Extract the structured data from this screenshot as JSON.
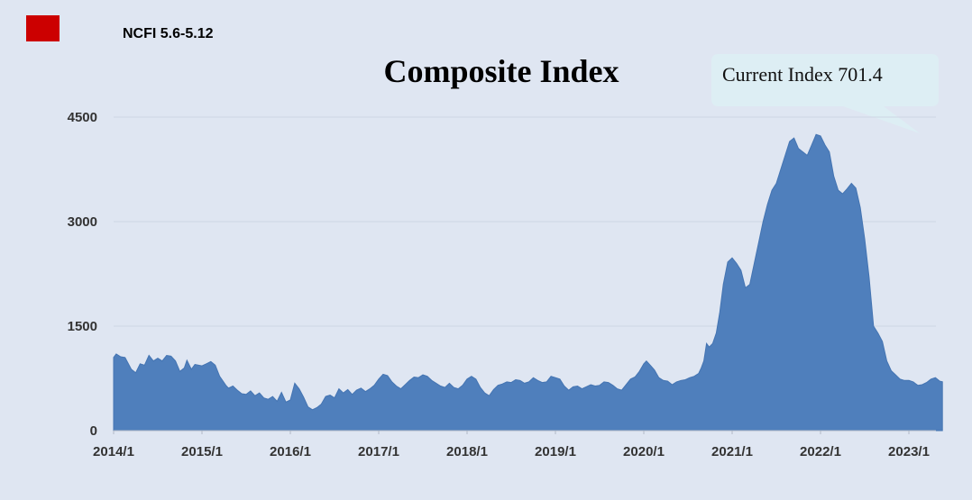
{
  "legend": {
    "label": "NCFI 5.6-5.12",
    "color": "#cc0000"
  },
  "callout": {
    "text": "Current Index 701.4"
  },
  "chart_data": {
    "type": "area",
    "title": "Composite Index",
    "xlabel": "",
    "ylabel": "",
    "ylim": [
      0,
      4500
    ],
    "yticks": [
      "0",
      "1500",
      "3000",
      "4500"
    ],
    "xticks": [
      "2014/1",
      "2015/1",
      "2016/1",
      "2017/1",
      "2018/1",
      "2019/1",
      "2020/1",
      "2021/1",
      "2022/1",
      "2023/1"
    ],
    "grid": true,
    "fill_color": "#4f7fbc",
    "x_range": [
      2014.0,
      2023.38
    ],
    "series": [
      {
        "values": [
          [
            2014.0,
            1050
          ],
          [
            2014.03,
            1100
          ],
          [
            2014.08,
            1060
          ],
          [
            2014.13,
            1050
          ],
          [
            2014.2,
            880
          ],
          [
            2014.25,
            830
          ],
          [
            2014.3,
            960
          ],
          [
            2014.35,
            940
          ],
          [
            2014.4,
            1080
          ],
          [
            2014.45,
            1000
          ],
          [
            2014.5,
            1040
          ],
          [
            2014.55,
            1000
          ],
          [
            2014.6,
            1080
          ],
          [
            2014.65,
            1070
          ],
          [
            2014.7,
            1000
          ],
          [
            2014.75,
            850
          ],
          [
            2014.8,
            900
          ],
          [
            2014.83,
            1010
          ],
          [
            2014.88,
            880
          ],
          [
            2014.92,
            950
          ],
          [
            2015.0,
            930
          ],
          [
            2015.05,
            960
          ],
          [
            2015.1,
            990
          ],
          [
            2015.15,
            940
          ],
          [
            2015.2,
            780
          ],
          [
            2015.27,
            650
          ],
          [
            2015.3,
            610
          ],
          [
            2015.35,
            640
          ],
          [
            2015.4,
            580
          ],
          [
            2015.45,
            530
          ],
          [
            2015.5,
            520
          ],
          [
            2015.55,
            570
          ],
          [
            2015.6,
            500
          ],
          [
            2015.65,
            540
          ],
          [
            2015.7,
            470
          ],
          [
            2015.75,
            450
          ],
          [
            2015.8,
            490
          ],
          [
            2015.85,
            420
          ],
          [
            2015.9,
            550
          ],
          [
            2015.95,
            410
          ],
          [
            2016.0,
            440
          ],
          [
            2016.05,
            680
          ],
          [
            2016.1,
            600
          ],
          [
            2016.15,
            480
          ],
          [
            2016.2,
            340
          ],
          [
            2016.25,
            300
          ],
          [
            2016.3,
            330
          ],
          [
            2016.35,
            380
          ],
          [
            2016.4,
            490
          ],
          [
            2016.45,
            510
          ],
          [
            2016.5,
            470
          ],
          [
            2016.55,
            600
          ],
          [
            2016.6,
            540
          ],
          [
            2016.65,
            590
          ],
          [
            2016.7,
            520
          ],
          [
            2016.75,
            580
          ],
          [
            2016.8,
            610
          ],
          [
            2016.85,
            560
          ],
          [
            2016.9,
            600
          ],
          [
            2016.95,
            650
          ],
          [
            2017.0,
            740
          ],
          [
            2017.05,
            810
          ],
          [
            2017.1,
            790
          ],
          [
            2017.15,
            700
          ],
          [
            2017.2,
            640
          ],
          [
            2017.25,
            600
          ],
          [
            2017.3,
            660
          ],
          [
            2017.35,
            720
          ],
          [
            2017.4,
            770
          ],
          [
            2017.45,
            760
          ],
          [
            2017.5,
            800
          ],
          [
            2017.55,
            780
          ],
          [
            2017.6,
            720
          ],
          [
            2017.65,
            680
          ],
          [
            2017.7,
            640
          ],
          [
            2017.75,
            620
          ],
          [
            2017.8,
            680
          ],
          [
            2017.85,
            620
          ],
          [
            2017.9,
            600
          ],
          [
            2017.95,
            650
          ],
          [
            2018.0,
            740
          ],
          [
            2018.05,
            780
          ],
          [
            2018.1,
            740
          ],
          [
            2018.15,
            620
          ],
          [
            2018.2,
            540
          ],
          [
            2018.25,
            500
          ],
          [
            2018.3,
            590
          ],
          [
            2018.35,
            650
          ],
          [
            2018.4,
            670
          ],
          [
            2018.45,
            700
          ],
          [
            2018.5,
            690
          ],
          [
            2018.55,
            730
          ],
          [
            2018.6,
            720
          ],
          [
            2018.65,
            680
          ],
          [
            2018.7,
            700
          ],
          [
            2018.75,
            760
          ],
          [
            2018.8,
            720
          ],
          [
            2018.85,
            690
          ],
          [
            2018.9,
            700
          ],
          [
            2018.95,
            780
          ],
          [
            2019.0,
            760
          ],
          [
            2019.05,
            740
          ],
          [
            2019.1,
            640
          ],
          [
            2019.15,
            580
          ],
          [
            2019.2,
            630
          ],
          [
            2019.25,
            640
          ],
          [
            2019.3,
            600
          ],
          [
            2019.35,
            630
          ],
          [
            2019.4,
            660
          ],
          [
            2019.45,
            640
          ],
          [
            2019.5,
            650
          ],
          [
            2019.55,
            700
          ],
          [
            2019.6,
            690
          ],
          [
            2019.65,
            650
          ],
          [
            2019.7,
            600
          ],
          [
            2019.75,
            580
          ],
          [
            2019.8,
            660
          ],
          [
            2019.85,
            740
          ],
          [
            2019.9,
            770
          ],
          [
            2019.95,
            850
          ],
          [
            2020.0,
            960
          ],
          [
            2020.03,
            1000
          ],
          [
            2020.08,
            930
          ],
          [
            2020.12,
            870
          ],
          [
            2020.17,
            760
          ],
          [
            2020.22,
            720
          ],
          [
            2020.27,
            710
          ],
          [
            2020.32,
            660
          ],
          [
            2020.37,
            700
          ],
          [
            2020.42,
            720
          ],
          [
            2020.47,
            730
          ],
          [
            2020.52,
            760
          ],
          [
            2020.57,
            780
          ],
          [
            2020.62,
            820
          ],
          [
            2020.65,
            900
          ],
          [
            2020.68,
            1000
          ],
          [
            2020.71,
            1250
          ],
          [
            2020.74,
            1200
          ],
          [
            2020.78,
            1250
          ],
          [
            2020.82,
            1400
          ],
          [
            2020.86,
            1700
          ],
          [
            2020.9,
            2100
          ],
          [
            2020.95,
            2420
          ],
          [
            2021.0,
            2480
          ],
          [
            2021.05,
            2400
          ],
          [
            2021.1,
            2300
          ],
          [
            2021.15,
            2050
          ],
          [
            2021.2,
            2100
          ],
          [
            2021.25,
            2400
          ],
          [
            2021.3,
            2700
          ],
          [
            2021.35,
            3000
          ],
          [
            2021.4,
            3250
          ],
          [
            2021.45,
            3450
          ],
          [
            2021.5,
            3550
          ],
          [
            2021.55,
            3750
          ],
          [
            2021.6,
            3950
          ],
          [
            2021.65,
            4150
          ],
          [
            2021.7,
            4200
          ],
          [
            2021.75,
            4050
          ],
          [
            2021.8,
            4000
          ],
          [
            2021.85,
            3950
          ],
          [
            2021.9,
            4100
          ],
          [
            2021.95,
            4250
          ],
          [
            2022.0,
            4230
          ],
          [
            2022.05,
            4100
          ],
          [
            2022.1,
            4000
          ],
          [
            2022.15,
            3650
          ],
          [
            2022.2,
            3450
          ],
          [
            2022.25,
            3400
          ],
          [
            2022.3,
            3470
          ],
          [
            2022.35,
            3550
          ],
          [
            2022.4,
            3480
          ],
          [
            2022.45,
            3200
          ],
          [
            2022.5,
            2750
          ],
          [
            2022.55,
            2200
          ],
          [
            2022.6,
            1500
          ],
          [
            2022.65,
            1400
          ],
          [
            2022.7,
            1280
          ],
          [
            2022.75,
            1000
          ],
          [
            2022.8,
            860
          ],
          [
            2022.85,
            800
          ],
          [
            2022.9,
            740
          ],
          [
            2022.95,
            720
          ],
          [
            2023.0,
            720
          ],
          [
            2023.05,
            700
          ],
          [
            2023.1,
            650
          ],
          [
            2023.15,
            660
          ],
          [
            2023.2,
            690
          ],
          [
            2023.25,
            740
          ],
          [
            2023.3,
            760
          ],
          [
            2023.35,
            710
          ],
          [
            2023.38,
            701.4
          ]
        ]
      }
    ]
  }
}
